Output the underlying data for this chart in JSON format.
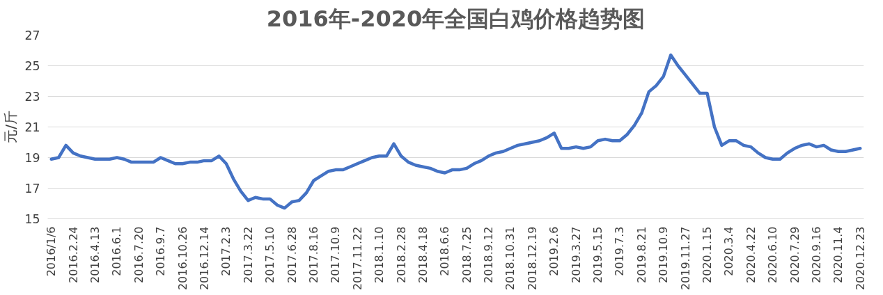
{
  "chart_data": {
    "type": "line",
    "title": "2016年-2020年全国白鸡价格趋势图",
    "ylabel": "元/斤",
    "categories": [
      "2016/1/6",
      null,
      null,
      "2016.2.24",
      null,
      null,
      "2016.4.13",
      null,
      null,
      "2016.6.1",
      null,
      null,
      "2016.7.20",
      null,
      null,
      "2016.9.7",
      null,
      null,
      "2016.10.26",
      null,
      null,
      "2016.12.14",
      null,
      null,
      "2017.2.3",
      null,
      null,
      "2017.3.22",
      null,
      null,
      "2017.5.10",
      null,
      null,
      "2017.6.28",
      null,
      null,
      "2017.8.16",
      null,
      null,
      "2017.10.9",
      null,
      null,
      "2017.11.22",
      null,
      null,
      "2018.1.10",
      null,
      null,
      "2018.2.28",
      null,
      null,
      "2018.4.18",
      null,
      null,
      "2018.6.6",
      null,
      null,
      "2018.7.25",
      null,
      null,
      "2018.9.12",
      null,
      null,
      "2018.10.31",
      null,
      null,
      "2018.12.19",
      null,
      null,
      "2019.2.6",
      null,
      null,
      "2019.3.27",
      null,
      null,
      "2019.5.15",
      null,
      null,
      "2019.7.3",
      null,
      null,
      "2019.8.21",
      null,
      null,
      "2019.10.9",
      null,
      null,
      "2019.11.27",
      null,
      null,
      "2020.1.15",
      null,
      null,
      "2020.3.4",
      null,
      null,
      "2020.4.22",
      null,
      null,
      "2020.6.10",
      null,
      null,
      "2020.7.29",
      null,
      null,
      "2020.9.16",
      null,
      null,
      "2020.11.4",
      null,
      null,
      "2020.12.23"
    ],
    "series": [
      {
        "color": "#4472c4",
        "values": [
          18.9,
          19.0,
          19.8,
          19.3,
          19.1,
          19.0,
          18.9,
          18.9,
          18.9,
          19.0,
          18.9,
          18.7,
          18.7,
          18.7,
          18.7,
          19.0,
          18.8,
          18.6,
          18.6,
          18.7,
          18.7,
          18.8,
          18.8,
          19.1,
          18.6,
          17.6,
          16.8,
          16.2,
          16.4,
          16.3,
          16.3,
          15.9,
          15.7,
          16.1,
          16.2,
          16.7,
          17.5,
          17.8,
          18.1,
          18.2,
          18.2,
          18.4,
          18.6,
          18.8,
          19.0,
          19.1,
          19.1,
          19.9,
          19.1,
          18.7,
          18.5,
          18.4,
          18.3,
          18.1,
          18.0,
          18.2,
          18.2,
          18.3,
          18.6,
          18.8,
          19.1,
          19.3,
          19.4,
          19.6,
          19.8,
          19.9,
          20.0,
          20.1,
          20.3,
          20.6,
          19.6,
          19.6,
          19.7,
          19.6,
          19.7,
          20.1,
          20.2,
          20.1,
          20.1,
          20.5,
          21.1,
          21.9,
          23.3,
          23.7,
          24.3,
          25.7,
          25.0,
          24.4,
          23.8,
          23.2,
          23.2,
          21.0,
          19.8,
          20.1,
          20.1,
          19.8,
          19.7,
          19.3,
          19.0,
          18.9,
          18.9,
          19.3,
          19.6,
          19.8,
          19.9,
          19.7,
          19.8,
          19.5,
          19.4,
          19.4,
          19.5,
          19.6
        ]
      }
    ],
    "ylim": [
      15,
      27
    ],
    "yticks": [
      15,
      17,
      19,
      21,
      23,
      25,
      27
    ],
    "grid": "y",
    "line_style": "solid",
    "marker": "none"
  }
}
